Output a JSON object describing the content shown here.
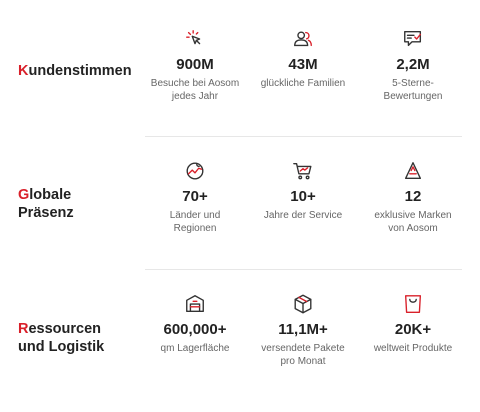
{
  "sections": [
    {
      "title_initial": "K",
      "title_rest": "undenstimmen",
      "title_line2": "",
      "stats": [
        {
          "icon": "cursor-click-icon",
          "value": "900M",
          "label_line1": "Besuche bei Aosom",
          "label_line2": "jedes Jahr"
        },
        {
          "icon": "users-icon",
          "value": "43M",
          "label_line1": "glückliche Familien",
          "label_line2": ""
        },
        {
          "icon": "review-icon",
          "value": "2,2M",
          "label_line1": "5-Sterne-",
          "label_line2": "Bewertungen"
        }
      ]
    },
    {
      "title_initial": "G",
      "title_rest": "lobale",
      "title_line2": "Präsenz",
      "stats": [
        {
          "icon": "globe-icon",
          "value": "70+",
          "label_line1": "Länder und",
          "label_line2": "Regionen"
        },
        {
          "icon": "cart-icon",
          "value": "10+",
          "label_line1": "Jahre der Service",
          "label_line2": ""
        },
        {
          "icon": "brand-a-icon",
          "value": "12",
          "label_line1": "exklusive Marken",
          "label_line2": "von Aosom"
        }
      ]
    },
    {
      "title_initial": "R",
      "title_rest": "essourcen",
      "title_line2": "und Logistik",
      "stats": [
        {
          "icon": "warehouse-icon",
          "value": "600,000+",
          "label_line1": "qm Lagerfläche",
          "label_line2": ""
        },
        {
          "icon": "package-icon",
          "value": "11,1M+",
          "label_line1": "versendete Pakete",
          "label_line2": "pro Monat"
        },
        {
          "icon": "shopping-bag-icon",
          "value": "20K+",
          "label_line1": "weltweit Produkte",
          "label_line2": ""
        }
      ]
    }
  ],
  "colors": {
    "accent": "#d9202a",
    "text": "#222222",
    "muted": "#666666",
    "divider": "#e7e7e7"
  }
}
